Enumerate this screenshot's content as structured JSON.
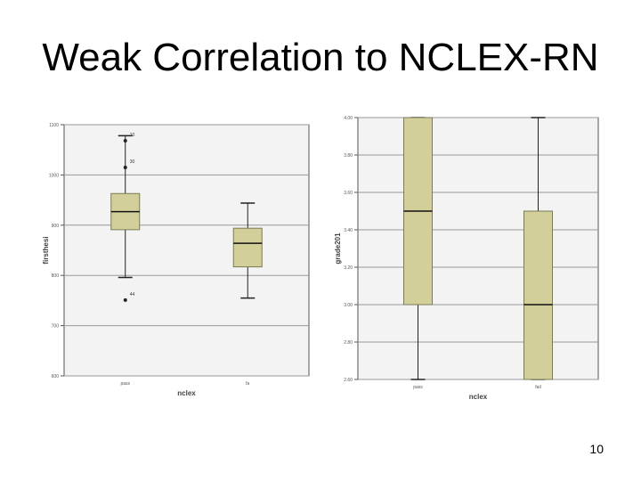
{
  "slide": {
    "title": "Weak Correlation to NCLEX-RN",
    "page_number": "10"
  },
  "colors": {
    "box_fill": "#d3cf9a",
    "box_stroke": "#7a7a55",
    "plot_bg": "#f3f3f3",
    "grid": "#9a9a9a"
  },
  "chart_data": [
    {
      "type": "boxplot",
      "title": "",
      "xlabel": "nclex",
      "ylabel": "firsthesi",
      "ylim": [
        600,
        1100
      ],
      "yticks": [
        600,
        700,
        800,
        900,
        1000,
        1100
      ],
      "ytick_labels": [
        "600",
        "700",
        "800",
        "900",
        "1000",
        "1100"
      ],
      "grid": true,
      "categories": [
        "pass",
        "fail"
      ],
      "category_labels": [
        "pass",
        "fa"
      ],
      "boxes": [
        {
          "name": "pass",
          "whisker_low": 796,
          "q1": 891,
          "median": 927,
          "q3": 963,
          "whisker_high": 1078
        },
        {
          "name": "fail",
          "whisker_low": 755,
          "q1": 817,
          "median": 864,
          "q3": 894,
          "whisker_high": 944
        }
      ],
      "outliers": [
        {
          "category": "pass",
          "value": 1068,
          "label": "10"
        },
        {
          "category": "pass",
          "value": 1068,
          "label": "30"
        },
        {
          "category": "pass",
          "value": 751,
          "label": "44"
        }
      ]
    },
    {
      "type": "boxplot",
      "title": "",
      "xlabel": "nclex",
      "ylabel": "grade201",
      "ylim": [
        2.6,
        4.0
      ],
      "yticks": [
        2.6,
        2.8,
        3.0,
        3.2,
        3.4,
        3.6,
        3.8,
        4.0
      ],
      "ytick_labels": [
        "2.60",
        "2.80",
        "3.00",
        "3.20",
        "3.40",
        "3.60",
        "3.80",
        "4.00"
      ],
      "grid": true,
      "categories": [
        "pass",
        "fail"
      ],
      "category_labels": [
        "pass",
        "fail"
      ],
      "boxes": [
        {
          "name": "pass",
          "whisker_low": 2.5,
          "q1": 3.0,
          "median": 3.5,
          "q3": 4.0,
          "whisker_high": 4.0
        },
        {
          "name": "fail",
          "whisker_low": 2.5,
          "q1": 2.5,
          "median": 3.0,
          "q3": 3.5,
          "whisker_high": 4.0
        }
      ],
      "outliers": []
    }
  ]
}
